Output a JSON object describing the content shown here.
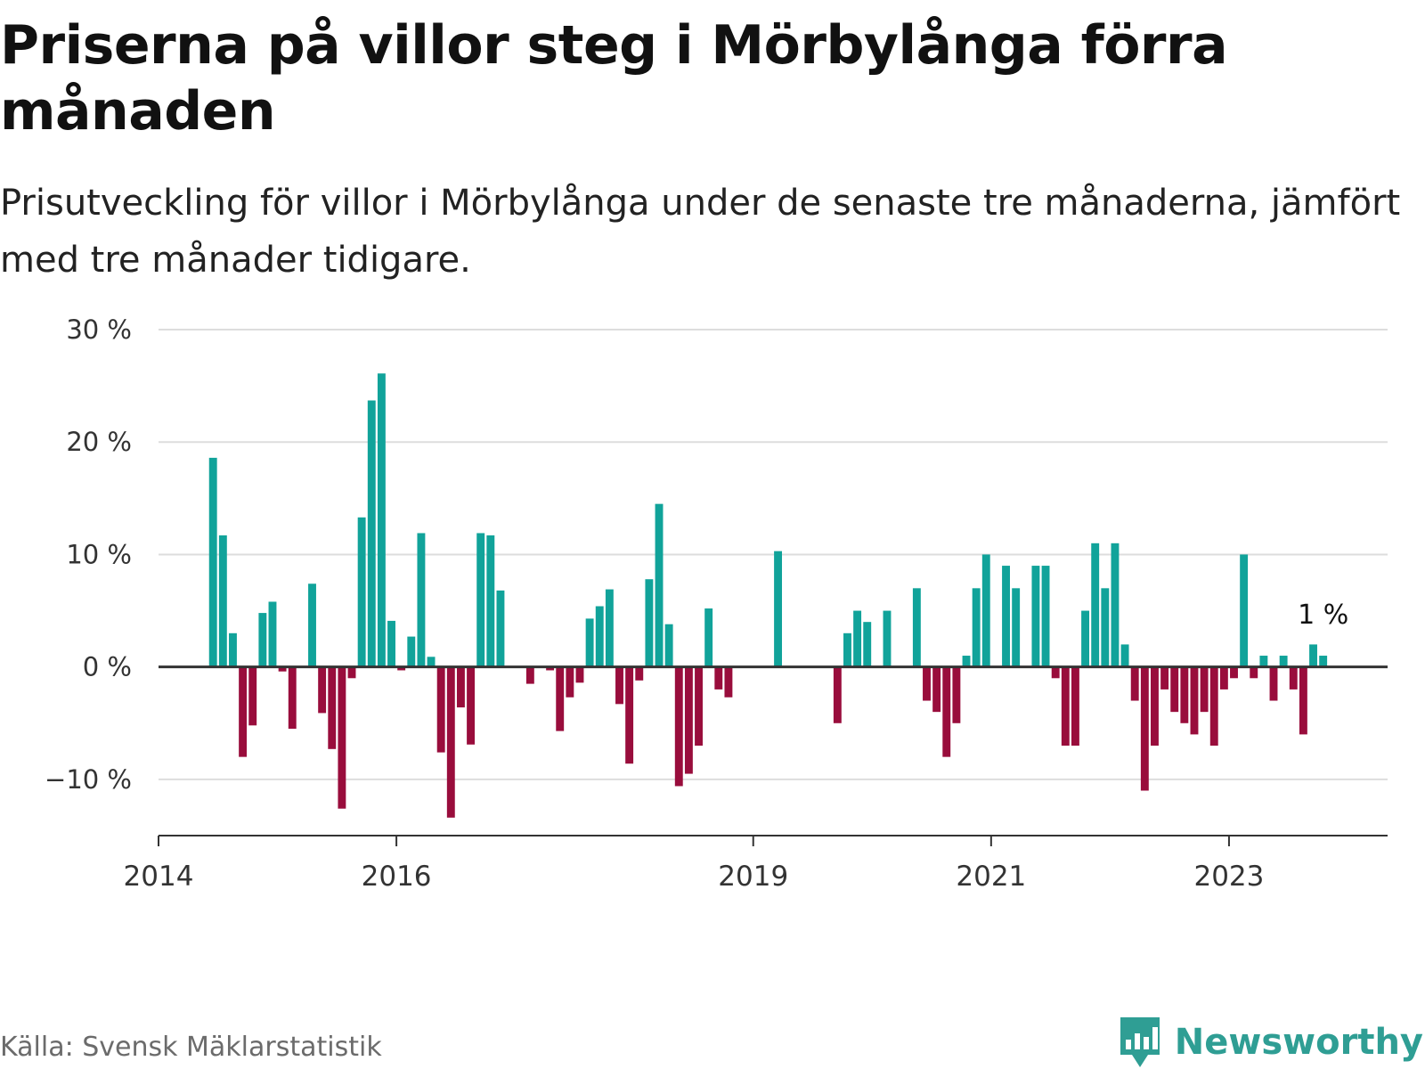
{
  "header": {
    "title": "Priserna på villor steg i Mörbylånga förra månaden",
    "subtitle": "Prisutveckling för villor i Mörbylånga under de senaste tre månaderna, jämfört med tre månader tidigare."
  },
  "footer": {
    "source": "Källa: Svensk Mäklarstatistik",
    "brand": "Newsworthy",
    "brand_icon": "bar-chart-speech-bubble-icon"
  },
  "colors": {
    "positive": "#11a39a",
    "negative": "#990d3c",
    "grid": "#dddddd",
    "zero_line": "#333333",
    "brand": "#2f9e94"
  },
  "chart_data": {
    "type": "bar",
    "title": "Priserna på villor steg i Mörbylånga förra månaden",
    "xlabel": "",
    "ylabel": "",
    "unit": "%",
    "ylim": [
      -15,
      30
    ],
    "yticks": [
      30,
      20,
      10,
      0,
      -10
    ],
    "ytick_labels": [
      "30 %",
      "20 %",
      "10 %",
      "0 %",
      "−10 %"
    ],
    "xlim": [
      "2014-01",
      "2024-05"
    ],
    "xticks": [
      {
        "label": "2014",
        "date": "2014-01"
      },
      {
        "label": "2016",
        "date": "2016-01"
      },
      {
        "label": "2019",
        "date": "2019-01"
      },
      {
        "label": "2021",
        "date": "2021-01"
      },
      {
        "label": "2023",
        "date": "2023-01"
      }
    ],
    "start_month": "2014-06",
    "values": [
      18.6,
      11.7,
      3.0,
      -8.0,
      -5.2,
      4.8,
      5.8,
      -0.4,
      -5.5,
      0,
      7.4,
      -4.1,
      -7.3,
      -12.6,
      -1.0,
      13.3,
      23.7,
      26.1,
      4.1,
      -0.3,
      2.7,
      11.9,
      0.9,
      -7.6,
      -13.4,
      -3.6,
      -6.9,
      11.9,
      11.7,
      6.8,
      0,
      0,
      -1.5,
      0,
      -0.3,
      -5.7,
      -2.7,
      -1.4,
      4.3,
      5.4,
      6.9,
      -3.3,
      -8.6,
      -1.2,
      7.8,
      14.5,
      3.8,
      -10.6,
      -9.5,
      -7.0,
      5.2,
      -2.0,
      -2.7,
      0,
      0,
      0,
      0,
      10.3,
      0,
      0,
      0,
      0,
      0,
      -5.0,
      3.0,
      5.0,
      4.0,
      0,
      5.0,
      0,
      0,
      7.0,
      -3.0,
      -4.0,
      -8.0,
      -5.0,
      1.0,
      7.0,
      10.0,
      0,
      9.0,
      7.0,
      0,
      9.0,
      9.0,
      -1.0,
      -7.0,
      -7.0,
      5.0,
      11.0,
      7.0,
      11.0,
      2.0,
      -3.0,
      -11.0,
      -7.0,
      -2.0,
      -4.0,
      -5.0,
      -6.0,
      -4.0,
      -7.0,
      -2.0,
      -1.0,
      10.0,
      -1.0,
      1.0,
      -3.0,
      1.0,
      -2.0,
      -6.0,
      2.0,
      1.0
    ],
    "annotation": {
      "text": "1 %",
      "index": 112
    }
  }
}
